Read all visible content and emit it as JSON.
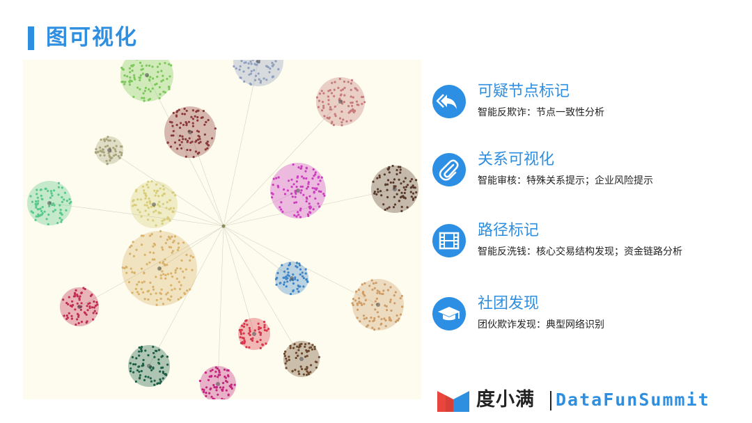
{
  "page": {
    "title": "图可视化"
  },
  "colors": {
    "accent": "#2e8ee0",
    "graph_bg": "#fdfcee",
    "logo_red": "#e8453c",
    "logo_blue": "#2e8ee0"
  },
  "graph": {
    "clusters": [
      {
        "color": "#7cc85a"
      },
      {
        "color": "#8f9fbf"
      },
      {
        "color": "#c77b7b"
      },
      {
        "color": "#8b3a3a"
      },
      {
        "color": "#a7a37a"
      },
      {
        "color": "#cc3fbf"
      },
      {
        "color": "#5a3b2b"
      },
      {
        "color": "#58c98a"
      },
      {
        "color": "#d8cd7a"
      },
      {
        "color": "#d9b26a"
      },
      {
        "color": "#c02e52"
      },
      {
        "color": "#3f86c8"
      },
      {
        "color": "#cf9d68"
      },
      {
        "color": "#d8364a"
      },
      {
        "color": "#1d5f46"
      },
      {
        "color": "#c4267f"
      },
      {
        "color": "#6d4a2e"
      }
    ]
  },
  "features": [
    {
      "title": "可疑节点标记",
      "desc": "智能反欺诈：节点一致性分析",
      "icon": "reply-icon"
    },
    {
      "title": "关系可视化",
      "desc": "智能审核：特殊关系提示；企业风险提示",
      "icon": "paperclip-icon"
    },
    {
      "title": "路径标记",
      "desc": "智能反洗钱：核心交易结构发现；资金链路分析",
      "icon": "film-icon"
    },
    {
      "title": "社团发现",
      "desc": "团伙欺诈发现：典型网络识别",
      "icon": "graduation-cap-icon"
    }
  ],
  "brand": {
    "name": "度小满",
    "summit": "DataFunSummit",
    "logo": "duxiaoman-logo-icon"
  }
}
